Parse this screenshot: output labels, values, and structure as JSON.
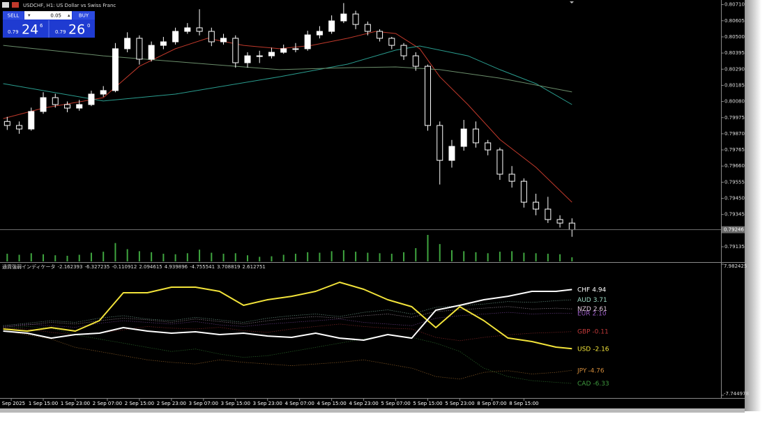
{
  "header": {
    "symbol_title": "USDCHF, H1:  US Dollar vs Swiss Franc"
  },
  "trade_panel": {
    "sell": "SELL",
    "buy": "BUY",
    "lot": "0.05",
    "bid": {
      "prefix": "0.79",
      "main": "24",
      "small": "6"
    },
    "ask": {
      "prefix": "0.79",
      "main": "26",
      "small": "0"
    }
  },
  "chart_data": [
    {
      "type": "candlestick",
      "xlim": [
        4.2,
        184.2
      ],
      "ylim": [
        0.7904,
        0.8074
      ],
      "x": [
        6,
        9,
        12,
        15,
        18,
        21,
        24,
        27,
        30,
        33,
        36,
        39,
        42,
        45,
        48,
        51,
        54,
        57,
        60,
        63,
        66,
        69,
        72,
        75,
        78,
        81,
        84,
        87,
        90,
        93,
        96,
        99,
        102,
        105,
        108,
        111,
        114,
        117,
        120,
        123,
        126,
        129,
        132,
        135,
        138,
        141,
        144,
        147
      ],
      "open": [
        0.7995,
        0.79924,
        0.79901,
        0.80015,
        0.80105,
        0.8006,
        0.80037,
        0.8006,
        0.80128,
        0.80151,
        0.80423,
        0.80491,
        0.80355,
        0.80445,
        0.80468,
        0.80536,
        0.80559,
        0.80536,
        0.80468,
        0.80491,
        0.80332,
        0.80377,
        0.80377,
        0.804,
        0.80423,
        0.80423,
        0.80513,
        0.80536,
        0.80604,
        0.80649,
        0.80581,
        0.80536,
        0.80491,
        0.80445,
        0.80377,
        0.80309,
        0.79924,
        0.79697,
        0.79788,
        0.79901,
        0.79811,
        0.79765,
        0.79607,
        0.79561,
        0.79425,
        0.7938,
        0.79312,
        0.79289
      ],
      "high": [
        0.7998,
        0.7995,
        0.8004,
        0.8014,
        0.8013,
        0.8008,
        0.8009,
        0.8015,
        0.8018,
        0.8046,
        0.8053,
        0.8051,
        0.8047,
        0.805,
        0.8056,
        0.8059,
        0.8068,
        0.8056,
        0.8052,
        0.8051,
        0.804,
        0.8041,
        0.8043,
        0.8045,
        0.8046,
        0.8054,
        0.8057,
        0.8064,
        0.8072,
        0.8067,
        0.806,
        0.8055,
        0.805,
        0.8046,
        0.804,
        0.8032,
        0.7995,
        0.7983,
        0.7996,
        0.7995,
        0.7983,
        0.7978,
        0.7966,
        0.7958,
        0.7948,
        0.7946,
        0.7934,
        0.7932
      ],
      "low": [
        0.79895,
        0.7987,
        0.7989,
        0.8,
        0.8004,
        0.8001,
        0.8002,
        0.8005,
        0.8011,
        0.8014,
        0.804,
        0.8032,
        0.8034,
        0.8042,
        0.8045,
        0.8052,
        0.8051,
        0.8044,
        0.8045,
        0.803,
        0.803,
        0.8033,
        0.8036,
        0.8039,
        0.804,
        0.8041,
        0.8049,
        0.8052,
        0.8059,
        0.8055,
        0.8051,
        0.8047,
        0.8042,
        0.8035,
        0.8028,
        0.7989,
        0.7954,
        0.7965,
        0.7976,
        0.7978,
        0.7973,
        0.7957,
        0.7952,
        0.7939,
        0.7934,
        0.7929,
        0.7926,
        0.792
      ],
      "close": [
        0.79924,
        0.79901,
        0.80015,
        0.80105,
        0.8006,
        0.80037,
        0.8006,
        0.80128,
        0.80151,
        0.80423,
        0.80491,
        0.80355,
        0.80445,
        0.80468,
        0.80536,
        0.80559,
        0.80536,
        0.80468,
        0.80491,
        0.80332,
        0.80377,
        0.80377,
        0.804,
        0.80423,
        0.80423,
        0.80513,
        0.80536,
        0.80604,
        0.80649,
        0.80581,
        0.80536,
        0.80491,
        0.80445,
        0.80377,
        0.80309,
        0.79924,
        0.79697,
        0.79788,
        0.79901,
        0.79811,
        0.79765,
        0.79607,
        0.79561,
        0.79425,
        0.7938,
        0.79312,
        0.79289,
        0.79246
      ],
      "volume": [
        1500,
        1300,
        1600,
        1400,
        1200,
        1100,
        1300,
        1700,
        1900,
        3600,
        2400,
        2000,
        1800,
        1500,
        1400,
        1600,
        2300,
        1700,
        1500,
        1600,
        1200,
        900,
        1000,
        1300,
        1500,
        1800,
        1700,
        2000,
        2200,
        1900,
        1700,
        1600,
        1500,
        1800,
        2600,
        5200,
        3400,
        2200,
        2000,
        1800,
        1600,
        1900,
        2000,
        1700,
        1600,
        1500,
        1400,
        800
      ],
      "up_color": "#ffffff",
      "down_color": "#000000",
      "wick_color": "#ffffff",
      "volume_color": "#3fa53f",
      "price_line_color": "#6b6b6b",
      "lines": [
        {
          "color": "#c0392b",
          "x": [
            5,
            15,
            30,
            39,
            48,
            56,
            65,
            74,
            82,
            91,
            98,
            103,
            109,
            114,
            121,
            129,
            138,
            147
          ],
          "values": [
            0.79969,
            0.80037,
            0.80105,
            0.80309,
            0.80423,
            0.80491,
            0.80445,
            0.80423,
            0.80445,
            0.80491,
            0.80536,
            0.80522,
            0.80423,
            0.80241,
            0.8006,
            0.79833,
            0.79652,
            0.79425
          ]
        },
        {
          "color": "#2a9d8f",
          "x": [
            5,
            30,
            48,
            74,
            91,
            103,
            109,
            121,
            129,
            138,
            147
          ],
          "values": [
            0.80196,
            0.80083,
            0.80128,
            0.80241,
            0.80323,
            0.80414,
            0.80441,
            0.80377,
            0.80287,
            0.80196,
            0.8006
          ]
        },
        {
          "color": "#6b8e6b",
          "x": [
            5,
            30,
            56,
            74,
            91,
            103,
            114,
            129,
            147
          ],
          "values": [
            0.80445,
            0.80377,
            0.80323,
            0.80287,
            0.803,
            0.80305,
            0.80287,
            0.80232,
            0.80142
          ]
        }
      ],
      "yticks": [
        {
          "value": 0.8071,
          "label": "0.80710"
        },
        0.80605,
        {
          "value": 0.805,
          "label": "0.80500"
        },
        0.80395,
        {
          "value": 0.8029,
          "label": "0.80290"
        },
        0.80185,
        {
          "value": 0.8008,
          "label": "0.80080"
        },
        0.79975,
        {
          "value": 0.7987,
          "label": "0.79870"
        },
        0.79765,
        {
          "value": 0.7966,
          "label": "0.79660"
        },
        0.79555,
        {
          "value": 0.7945,
          "label": "0.79450"
        },
        0.79345,
        0.79135
      ],
      "xticks": [
        {
          "value": 7,
          "label": "1 Sep 2025"
        },
        {
          "value": 15,
          "label": "1 Sep 15:00"
        },
        {
          "value": 23,
          "label": "1 Sep 23:00"
        },
        {
          "value": 31,
          "label": "2 Sep 07:00"
        },
        {
          "value": 39,
          "label": "2 Sep 15:00"
        },
        {
          "value": 47,
          "label": "2 Sep 23:00"
        },
        {
          "value": 55,
          "label": "3 Sep 07:00"
        },
        {
          "value": 63,
          "label": "3 Sep 15:00"
        },
        {
          "value": 71,
          "label": "3 Sep 23:00"
        },
        {
          "value": 79,
          "label": "4 Sep 07:00"
        },
        {
          "value": 87,
          "label": "4 Sep 15:00"
        },
        {
          "value": 95,
          "label": "4 Sep 23:00"
        },
        {
          "value": 103,
          "label": "5 Sep 07:00"
        },
        {
          "value": 111,
          "label": "5 Sep 15:00"
        },
        {
          "value": 119,
          "label": "5 Sep 23:00"
        },
        {
          "value": 127,
          "label": "8 Sep 07:00"
        },
        {
          "value": 135,
          "label": "8 Sep 15:00"
        }
      ]
    },
    {
      "type": "line",
      "title": "通貨強弱インディケータ",
      "xlim": [
        4.2,
        184.2
      ],
      "ylim": [
        -7.744978,
        7.982425
      ],
      "yticks": [
        7.982425,
        -7.744978
      ],
      "x": [
        5,
        11,
        17,
        23,
        29,
        35,
        41,
        47,
        53,
        59,
        65,
        71,
        77,
        83,
        89,
        95,
        101,
        107,
        113,
        119,
        125,
        131,
        137,
        143,
        147
      ],
      "series": [
        {
          "name": "USD",
          "last_label": "-2.16",
          "color": "#f2e33a",
          "dotted": false,
          "values": [
            0.2,
            -0.05,
            0.37,
            -0.05,
            1.21,
            4.55,
            4.55,
            5.22,
            5.22,
            4.72,
            3.05,
            3.72,
            4.13,
            4.72,
            5.81,
            4.97,
            3.72,
            2.88,
            0.37,
            2.88,
            1.21,
            -0.88,
            -1.3,
            -1.97,
            -2.162393
          ]
        },
        {
          "name": "CAD",
          "last_label": "-6.33",
          "color": "#3f9a3f",
          "dotted": true,
          "values": [
            0.2,
            0.5,
            0.3,
            -0.5,
            -1.0,
            -1.5,
            -2.0,
            -2.5,
            -2.2,
            -2.8,
            -3.2,
            -3.0,
            -2.5,
            -2.0,
            -1.5,
            -1.0,
            -0.5,
            -0.8,
            -1.5,
            -2.5,
            -4.5,
            -5.5,
            -6.0,
            -6.2,
            -6.327235
          ]
        },
        {
          "name": "GBP",
          "last_label": "-0.11",
          "color": "#c23a3a",
          "dotted": true,
          "values": [
            0.3,
            0.2,
            -0.2,
            -0.5,
            -0.3,
            0.1,
            0.5,
            0.3,
            0.2,
            0.4,
            0.0,
            -0.2,
            0.2,
            0.5,
            0.8,
            0.5,
            0.3,
            0.2,
            -0.8,
            -1.2,
            -0.8,
            -0.5,
            -0.3,
            -0.2,
            -0.110912
          ]
        },
        {
          "name": "EUR",
          "last_label": "2.10",
          "color": "#9a5cc4",
          "dotted": true,
          "values": [
            0.5,
            0.8,
            0.6,
            0.4,
            0.9,
            1.2,
            1.0,
            0.8,
            1.1,
            0.7,
            0.5,
            0.8,
            1.0,
            1.2,
            1.4,
            1.0,
            0.8,
            0.6,
            1.5,
            1.8,
            2.0,
            2.2,
            2.0,
            2.1,
            2.094615
          ]
        },
        {
          "name": "CHF",
          "last_label": "4.94",
          "color": "#ffffff",
          "dotted": false,
          "values": [
            -0.05,
            -0.3,
            -0.89,
            -0.47,
            -0.3,
            0.37,
            -0.05,
            -0.3,
            -0.13,
            -0.47,
            -0.3,
            -0.64,
            -0.8,
            -0.3,
            -0.89,
            -1.14,
            -0.47,
            -0.89,
            2.46,
            3.05,
            3.72,
            4.13,
            4.72,
            4.72,
            4.939896
          ]
        },
        {
          "name": "JPY",
          "last_label": "-4.76",
          "color": "#d08a3a",
          "dotted": true,
          "values": [
            0,
            -0.5,
            -1.0,
            -2.0,
            -2.5,
            -3.0,
            -3.5,
            -3.8,
            -4.0,
            -3.5,
            -3.8,
            -4.0,
            -4.2,
            -4.0,
            -3.8,
            -3.5,
            -4.0,
            -4.5,
            -5.5,
            -5.8,
            -5.0,
            -4.8,
            -5.2,
            -5.0,
            -4.755541
          ]
        },
        {
          "name": "AUD",
          "last_label": "3.71",
          "color": "#9edcc6",
          "dotted": true,
          "values": [
            0.6,
            0.9,
            1.2,
            1.0,
            1.5,
            1.8,
            1.4,
            1.2,
            1.6,
            1.3,
            1.0,
            1.5,
            1.8,
            2.0,
            1.7,
            2.2,
            2.5,
            2.0,
            2.8,
            3.0,
            3.2,
            3.5,
            3.4,
            3.6,
            3.708819
          ]
        },
        {
          "name": "NZD",
          "last_label": "2.61",
          "color": "#e0c8dc",
          "dotted": true,
          "values": [
            0.4,
            0.7,
            1.0,
            0.8,
            1.2,
            1.5,
            1.3,
            1.0,
            1.4,
            1.1,
            0.8,
            1.2,
            1.5,
            1.7,
            1.5,
            1.8,
            2.0,
            1.6,
            2.3,
            2.5,
            2.7,
            2.9,
            2.6,
            2.7,
            2.612751
          ]
        }
      ]
    }
  ]
}
